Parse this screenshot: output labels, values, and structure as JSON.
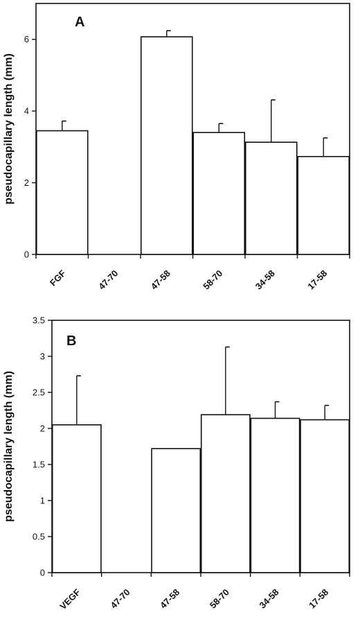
{
  "chart_data": [
    {
      "type": "bar",
      "panel_label": "A",
      "ylabel": "pseudocapillary length (mm)",
      "categories": [
        "FGF",
        "47-70",
        "47-58",
        "58-70",
        "34-58",
        "17-58"
      ],
      "values": [
        3.45,
        0,
        6.07,
        3.4,
        3.13,
        2.73
      ],
      "errors": [
        0.27,
        null,
        0.17,
        0.25,
        1.18,
        0.52
      ],
      "ylim": [
        0,
        7
      ],
      "yticks": [
        0,
        2,
        4,
        6
      ],
      "ytick_labels": [
        "0",
        "2",
        "4",
        "6"
      ],
      "grid": false,
      "bar_color": "#ffffff",
      "edge_color": "#111111"
    },
    {
      "type": "bar",
      "panel_label": "B",
      "ylabel": "pseudocapillary length  (mm)",
      "categories": [
        "VEGF",
        "47-70",
        "47-58",
        "58-70",
        "34-58",
        "17-58"
      ],
      "values": [
        2.05,
        0,
        1.72,
        2.19,
        2.14,
        2.12
      ],
      "errors": [
        0.68,
        null,
        null,
        0.94,
        0.23,
        0.2
      ],
      "ylim": [
        0,
        3.5
      ],
      "yticks": [
        0,
        0.5,
        1,
        1.5,
        2,
        2.5,
        3,
        3.5
      ],
      "ytick_labels": [
        "0",
        "0.5",
        "1",
        "1.5",
        "2",
        "2.5",
        "3",
        "3.5"
      ],
      "grid": false,
      "bar_color": "#ffffff",
      "edge_color": "#111111"
    }
  ]
}
